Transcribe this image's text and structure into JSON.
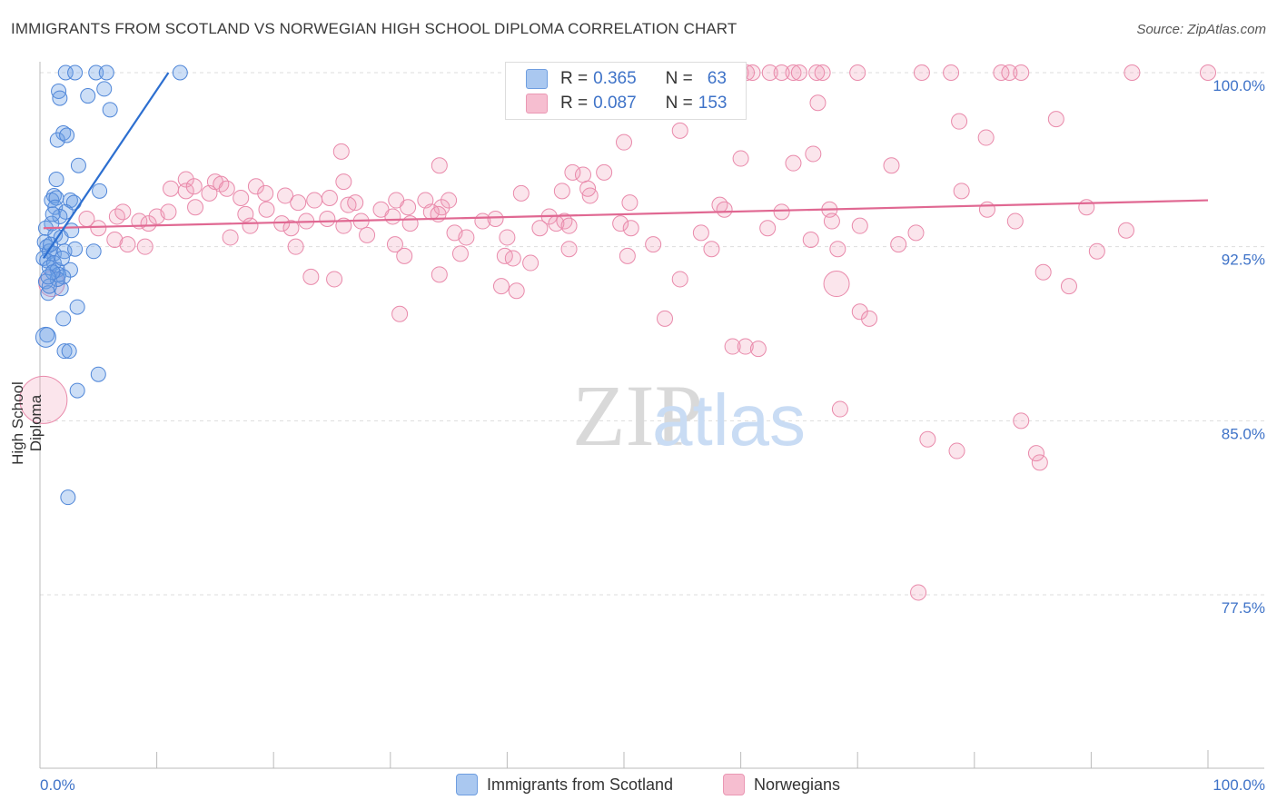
{
  "title": "IMMIGRANTS FROM SCOTLAND VS NORWEGIAN HIGH SCHOOL DIPLOMA CORRELATION CHART",
  "source": "Source: ZipAtlas.com",
  "watermark": {
    "zip": "ZIP",
    "atlas": "atlas"
  },
  "legend": {
    "rows": [
      {
        "r_label": "R = ",
        "r_value": "0.365",
        "n_label": "N = ",
        "n_value": "63",
        "color": "#aac8f0"
      },
      {
        "r_label": "R = ",
        "r_value": "0.087",
        "n_label": "N = ",
        "n_value": "153",
        "color": "#f6bed0"
      }
    ]
  },
  "colors": {
    "scotland_fill": "rgba(110,160,230,0.35)",
    "scotland_stroke": "#4f86d8",
    "scotland_line": "#2d6fd0",
    "norwegian_fill": "rgba(240,150,180,0.25)",
    "norwegian_stroke": "#e98aab",
    "norwegian_line": "#e06892",
    "axis_label": "#3f73c8",
    "grid": "#dddddd"
  },
  "chart_data": {
    "type": "scatter",
    "title": "IMMIGRANTS FROM SCOTLAND VS NORWEGIAN HIGH SCHOOL DIPLOMA CORRELATION CHART",
    "xlabel": "",
    "ylabel": "High School Diploma",
    "xlim": [
      0,
      100
    ],
    "ylim": [
      70.0,
      100.0
    ],
    "x_tick_labels": [
      "0.0%",
      "100.0%"
    ],
    "y_ticks": [
      77.5,
      85.0,
      92.5,
      100.0
    ],
    "y_tick_labels": [
      "77.5%",
      "85.0%",
      "92.5%",
      "100.0%"
    ],
    "grid": "horizontal dashed",
    "legend_placement": "bottom-center",
    "series": [
      {
        "name": "Immigrants from Scotland",
        "R": 0.365,
        "N": 63,
        "trend": {
          "x": [
            0.3,
            11.0
          ],
          "y": [
            92.0,
            100.0
          ]
        },
        "points": [
          [
            2.2,
            100.0
          ],
          [
            3.0,
            100.0
          ],
          [
            4.8,
            100.0
          ],
          [
            5.7,
            100.0
          ],
          [
            12.0,
            100.0
          ],
          [
            1.6,
            99.2
          ],
          [
            5.5,
            99.3
          ],
          [
            4.1,
            99.0
          ],
          [
            1.7,
            98.9
          ],
          [
            6.0,
            98.4
          ],
          [
            2.0,
            97.4
          ],
          [
            1.5,
            97.1
          ],
          [
            2.3,
            97.3
          ],
          [
            3.3,
            96.0
          ],
          [
            1.4,
            95.4
          ],
          [
            5.1,
            94.9
          ],
          [
            1.2,
            94.7
          ],
          [
            1.0,
            94.5
          ],
          [
            1.4,
            94.6
          ],
          [
            2.6,
            94.5
          ],
          [
            2.9,
            94.4
          ],
          [
            1.3,
            94.2
          ],
          [
            2.2,
            94.0
          ],
          [
            1.7,
            93.8
          ],
          [
            1.0,
            93.5
          ],
          [
            0.5,
            93.3
          ],
          [
            1.3,
            93.0
          ],
          [
            1.8,
            92.9
          ],
          [
            0.4,
            92.7
          ],
          [
            0.6,
            92.5
          ],
          [
            0.8,
            92.3
          ],
          [
            1.2,
            92.2
          ],
          [
            2.1,
            92.3
          ],
          [
            3.0,
            92.4
          ],
          [
            4.6,
            92.3
          ],
          [
            0.3,
            92.0
          ],
          [
            0.6,
            91.9
          ],
          [
            1.2,
            91.8
          ],
          [
            0.8,
            91.6
          ],
          [
            1.5,
            91.5
          ],
          [
            2.6,
            91.5
          ],
          [
            1.6,
            91.3
          ],
          [
            2.0,
            91.2
          ],
          [
            0.5,
            91.0
          ],
          [
            1.8,
            90.7
          ],
          [
            0.7,
            90.5
          ],
          [
            3.2,
            89.9
          ],
          [
            2.0,
            89.4
          ],
          [
            0.6,
            88.7
          ],
          [
            2.1,
            88.0
          ],
          [
            2.5,
            88.0
          ],
          [
            5.0,
            87.0
          ],
          [
            3.2,
            86.3
          ],
          [
            2.4,
            81.7
          ],
          [
            1.1,
            93.9
          ],
          [
            1.9,
            92.0
          ],
          [
            0.9,
            92.6
          ],
          [
            1.5,
            91.1
          ],
          [
            0.8,
            90.8
          ],
          [
            2.7,
            93.2
          ],
          [
            1.1,
            91.4
          ],
          [
            0.7,
            91.2
          ],
          [
            0.5,
            88.6
          ]
        ]
      },
      {
        "name": "Norwegians",
        "R": 0.087,
        "N": 153,
        "trend": {
          "x": [
            0.3,
            100.0
          ],
          "y": [
            93.3,
            94.5
          ]
        },
        "points": [
          [
            60.0,
            100.0
          ],
          [
            60.5,
            100.0
          ],
          [
            61.0,
            100.0
          ],
          [
            62.5,
            100.0
          ],
          [
            63.5,
            100.0
          ],
          [
            64.5,
            100.0
          ],
          [
            65.0,
            100.0
          ],
          [
            66.5,
            100.0
          ],
          [
            67.0,
            100.0
          ],
          [
            70.0,
            100.0
          ],
          [
            75.5,
            100.0
          ],
          [
            78.0,
            100.0
          ],
          [
            82.3,
            100.0
          ],
          [
            83.0,
            100.0
          ],
          [
            84.0,
            100.0
          ],
          [
            93.5,
            100.0
          ],
          [
            100.0,
            100.0
          ],
          [
            66.6,
            98.7
          ],
          [
            54.8,
            97.5
          ],
          [
            87.0,
            98.0
          ],
          [
            78.7,
            97.9
          ],
          [
            81.0,
            97.2
          ],
          [
            66.2,
            96.5
          ],
          [
            50.0,
            97.0
          ],
          [
            60.0,
            96.3
          ],
          [
            25.8,
            96.6
          ],
          [
            34.2,
            96.0
          ],
          [
            72.9,
            96.0
          ],
          [
            64.5,
            96.1
          ],
          [
            45.6,
            95.7
          ],
          [
            46.5,
            95.6
          ],
          [
            48.3,
            95.7
          ],
          [
            26.0,
            95.3
          ],
          [
            12.5,
            95.4
          ],
          [
            11.2,
            95.0
          ],
          [
            12.5,
            94.9
          ],
          [
            13.2,
            95.1
          ],
          [
            14.5,
            94.8
          ],
          [
            15.0,
            95.3
          ],
          [
            15.5,
            95.2
          ],
          [
            16.0,
            95.0
          ],
          [
            17.2,
            94.6
          ],
          [
            18.5,
            95.1
          ],
          [
            19.3,
            94.8
          ],
          [
            21.0,
            94.7
          ],
          [
            22.1,
            94.4
          ],
          [
            23.5,
            94.5
          ],
          [
            24.8,
            94.6
          ],
          [
            26.4,
            94.3
          ],
          [
            27.0,
            94.4
          ],
          [
            29.2,
            94.1
          ],
          [
            30.5,
            94.5
          ],
          [
            31.5,
            94.2
          ],
          [
            33.0,
            94.5
          ],
          [
            34.4,
            94.2
          ],
          [
            35.0,
            94.5
          ],
          [
            41.2,
            94.8
          ],
          [
            47.1,
            94.7
          ],
          [
            44.7,
            94.9
          ],
          [
            46.9,
            95.0
          ],
          [
            50.5,
            94.4
          ],
          [
            58.2,
            94.3
          ],
          [
            58.6,
            94.1
          ],
          [
            63.5,
            94.0
          ],
          [
            67.6,
            94.1
          ],
          [
            67.8,
            93.6
          ],
          [
            78.9,
            94.9
          ],
          [
            81.1,
            94.1
          ],
          [
            83.5,
            93.6
          ],
          [
            89.6,
            94.2
          ],
          [
            4.0,
            93.7
          ],
          [
            5.0,
            93.3
          ],
          [
            6.6,
            93.8
          ],
          [
            7.1,
            94.0
          ],
          [
            8.5,
            93.6
          ],
          [
            9.3,
            93.5
          ],
          [
            10.0,
            93.8
          ],
          [
            11.0,
            94.0
          ],
          [
            13.3,
            94.2
          ],
          [
            17.6,
            93.9
          ],
          [
            18.0,
            93.4
          ],
          [
            19.4,
            94.1
          ],
          [
            20.7,
            93.5
          ],
          [
            21.5,
            93.3
          ],
          [
            22.8,
            93.6
          ],
          [
            24.6,
            93.7
          ],
          [
            26.0,
            93.4
          ],
          [
            27.5,
            93.6
          ],
          [
            28.0,
            93.0
          ],
          [
            30.2,
            93.8
          ],
          [
            31.7,
            93.5
          ],
          [
            33.5,
            94.0
          ],
          [
            34.1,
            93.9
          ],
          [
            35.5,
            93.1
          ],
          [
            36.5,
            92.9
          ],
          [
            37.9,
            93.6
          ],
          [
            39.0,
            93.7
          ],
          [
            40.0,
            92.9
          ],
          [
            42.8,
            93.3
          ],
          [
            43.6,
            93.8
          ],
          [
            44.2,
            93.5
          ],
          [
            44.9,
            93.6
          ],
          [
            45.3,
            93.4
          ],
          [
            49.7,
            93.5
          ],
          [
            50.6,
            93.3
          ],
          [
            52.5,
            92.6
          ],
          [
            56.6,
            93.1
          ],
          [
            62.3,
            93.3
          ],
          [
            66.0,
            92.8
          ],
          [
            70.2,
            93.4
          ],
          [
            75.0,
            93.1
          ],
          [
            93.0,
            93.2
          ],
          [
            6.4,
            92.8
          ],
          [
            7.5,
            92.6
          ],
          [
            9.0,
            92.5
          ],
          [
            16.3,
            92.9
          ],
          [
            21.9,
            92.5
          ],
          [
            30.4,
            92.6
          ],
          [
            31.2,
            92.1
          ],
          [
            36.0,
            92.2
          ],
          [
            39.8,
            92.1
          ],
          [
            40.5,
            92.0
          ],
          [
            42.0,
            91.8
          ],
          [
            45.3,
            92.4
          ],
          [
            50.3,
            92.1
          ],
          [
            57.5,
            92.4
          ],
          [
            68.3,
            92.4
          ],
          [
            73.5,
            92.6
          ],
          [
            90.5,
            92.3
          ],
          [
            23.2,
            91.2
          ],
          [
            25.2,
            91.1
          ],
          [
            34.2,
            91.3
          ],
          [
            39.5,
            90.8
          ],
          [
            40.8,
            90.6
          ],
          [
            54.8,
            91.1
          ],
          [
            68.2,
            90.9
          ],
          [
            85.9,
            91.4
          ],
          [
            30.8,
            89.6
          ],
          [
            53.5,
            89.4
          ],
          [
            59.3,
            88.2
          ],
          [
            60.4,
            88.2
          ],
          [
            61.5,
            88.1
          ],
          [
            70.2,
            89.7
          ],
          [
            71.0,
            89.4
          ],
          [
            88.1,
            90.8
          ],
          [
            68.5,
            85.5
          ],
          [
            84.0,
            85.0
          ],
          [
            76.0,
            84.2
          ],
          [
            78.5,
            83.7
          ],
          [
            85.6,
            83.2
          ],
          [
            85.3,
            83.6
          ],
          [
            75.2,
            77.6
          ],
          [
            1.0,
            90.9
          ],
          [
            0.3,
            85.9
          ]
        ]
      }
    ]
  },
  "bottom_legend": [
    "Immigrants from Scotland",
    "Norwegians"
  ]
}
